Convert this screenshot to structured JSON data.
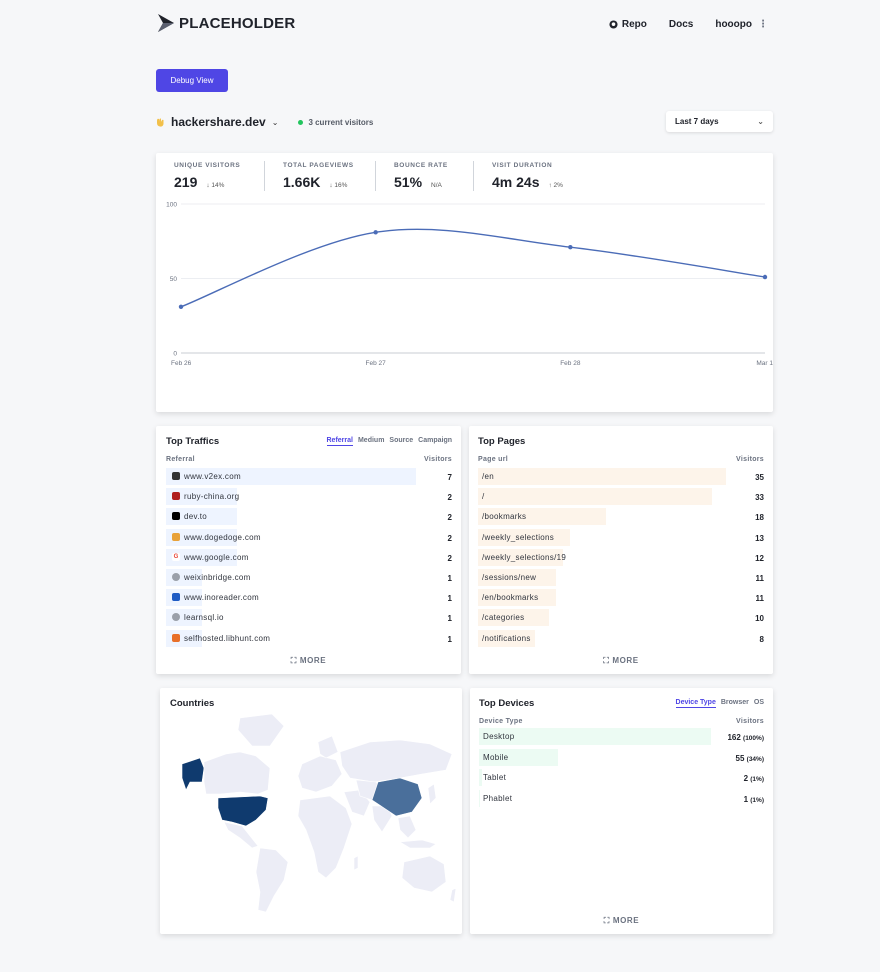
{
  "header": {
    "logo_text": "PLACEHOLDER",
    "repo": "Repo",
    "docs": "Docs",
    "user": "hooopo"
  },
  "debug_button": "Debug View",
  "site": {
    "name": "hackershare.dev",
    "current_visitors": "3 current visitors"
  },
  "range": {
    "selected": "Last 7 days"
  },
  "stats": [
    {
      "label": "UNIQUE VISITORS",
      "value": "219",
      "change": "↓ 14%"
    },
    {
      "label": "TOTAL PAGEVIEWS",
      "value": "1.66K",
      "change": "↓ 16%"
    },
    {
      "label": "BOUNCE RATE",
      "value": "51%",
      "change": "N/A"
    },
    {
      "label": "VISIT DURATION",
      "value": "4m 24s",
      "change": "↑ 2%"
    }
  ],
  "chart_data": {
    "type": "line",
    "x": [
      "Feb 26",
      "Feb 27",
      "Feb 28",
      "Mar 1"
    ],
    "series": [
      {
        "values": [
          31,
          81,
          71,
          51
        ]
      }
    ],
    "yticks": [
      "100",
      "50",
      "0"
    ],
    "ylim": [
      0,
      100
    ],
    "grid": true,
    "color": "#4b6cb7"
  },
  "traffic": {
    "title": "Top Traffics",
    "tabs": [
      "Referral",
      "Medium",
      "Source",
      "Campaign"
    ],
    "col_label": "Referral",
    "col_value": "Visitors",
    "rows": [
      {
        "label": "www.v2ex.com",
        "value": "7",
        "icon": "v2ex-icon"
      },
      {
        "label": "ruby-china.org",
        "value": "2",
        "icon": "ruby-icon"
      },
      {
        "label": "dev.to",
        "value": "2",
        "icon": "devto-icon"
      },
      {
        "label": "www.dogedoge.com",
        "value": "2",
        "icon": "dogedoge-icon"
      },
      {
        "label": "www.google.com",
        "value": "2",
        "icon": "google-icon"
      },
      {
        "label": "weixinbridge.com",
        "value": "1",
        "icon": "globe-icon"
      },
      {
        "label": "www.inoreader.com",
        "value": "1",
        "icon": "inoreader-icon"
      },
      {
        "label": "learnsql.io",
        "value": "1",
        "icon": "globe-icon"
      },
      {
        "label": "selfhosted.libhunt.com",
        "value": "1",
        "icon": "libhunt-icon"
      }
    ],
    "more": "MORE"
  },
  "pages": {
    "title": "Top Pages",
    "col_label": "Page url",
    "col_value": "Visitors",
    "rows": [
      {
        "label": "/en",
        "value": "35"
      },
      {
        "label": "/",
        "value": "33"
      },
      {
        "label": "/bookmarks",
        "value": "18"
      },
      {
        "label": "/weekly_selections",
        "value": "13"
      },
      {
        "label": "/weekly_selections/19",
        "value": "12"
      },
      {
        "label": "/sessions/new",
        "value": "11"
      },
      {
        "label": "/en/bookmarks",
        "value": "11"
      },
      {
        "label": "/categories",
        "value": "10"
      },
      {
        "label": "/notifications",
        "value": "8"
      }
    ],
    "more": "MORE"
  },
  "countries": {
    "title": "Countries"
  },
  "devices": {
    "title": "Top Devices",
    "tabs": [
      "Device Type",
      "Browser",
      "OS"
    ],
    "col_label": "Device Type",
    "col_value": "Visitors",
    "rows": [
      {
        "label": "Desktop",
        "value": "162",
        "pct": "(100%)"
      },
      {
        "label": "Mobile",
        "value": "55",
        "pct": "(34%)"
      },
      {
        "label": "Tablet",
        "value": "2",
        "pct": "(1%)"
      },
      {
        "label": "Phablet",
        "value": "1",
        "pct": "(1%)"
      }
    ],
    "more": "MORE"
  },
  "colors": {
    "accent": "#4f46e5",
    "traffic_bar": "#eef4ff",
    "pages_bar": "#fdf4ea",
    "devices_bar": "#ecfbf3",
    "map_dark": "#0f3a6e",
    "map_mid": "#4a6f9b",
    "map_light": "#ecedf6"
  }
}
